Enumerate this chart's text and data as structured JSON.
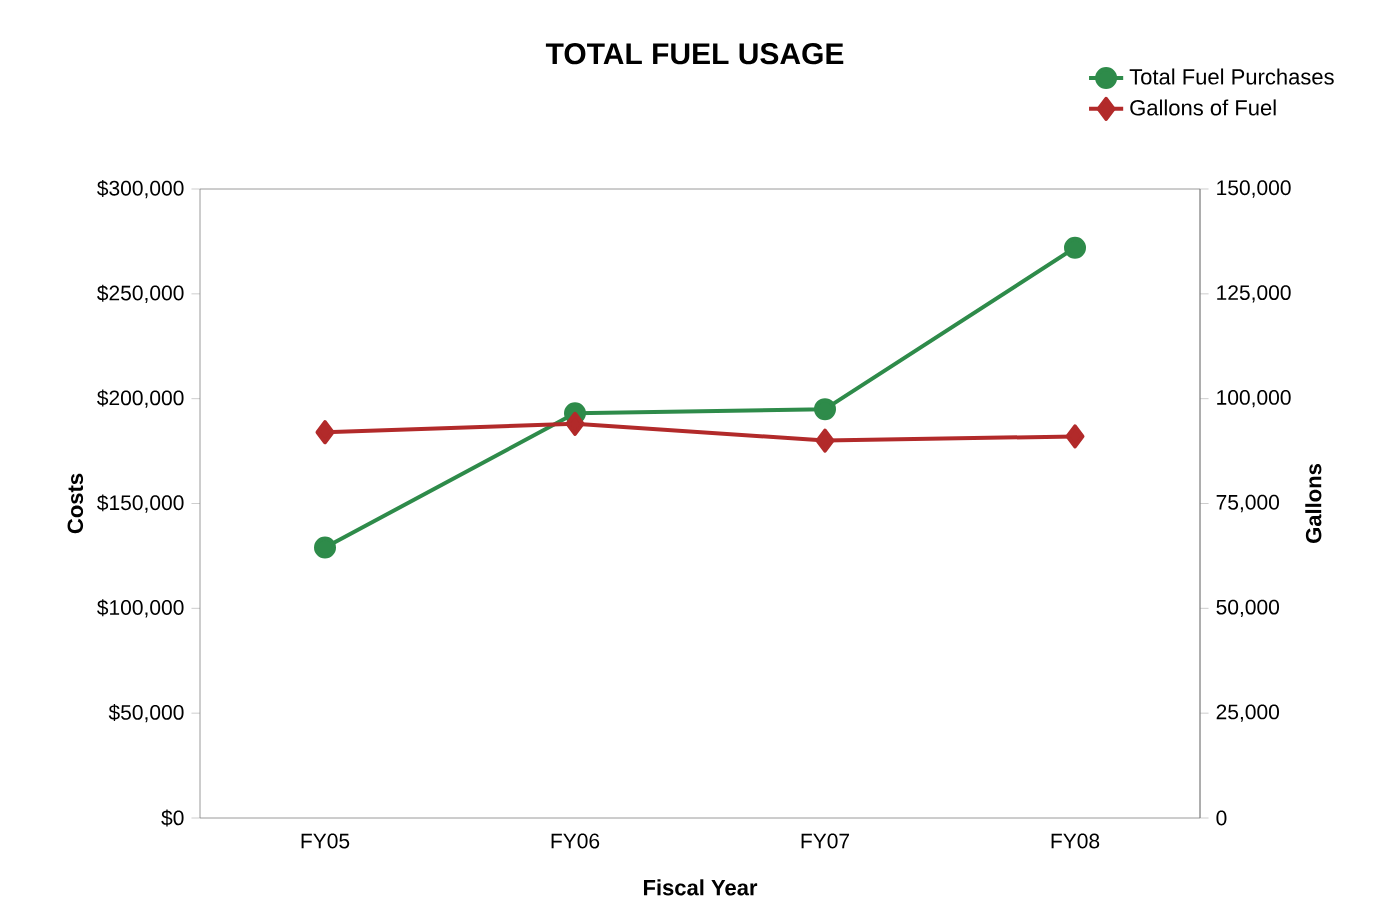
{
  "chart_data": {
    "type": "line",
    "title": "TOTAL FUEL USAGE",
    "xlabel": "Fiscal Year",
    "ylabel": "Costs",
    "y2label": "Gallons",
    "categories": [
      "FY05",
      "FY06",
      "FY07",
      "FY08"
    ],
    "series": [
      {
        "name": "Total Fuel Purchases",
        "color": "#2e8b4a",
        "marker": "circle",
        "values": [
          129000,
          193000,
          195000,
          272000
        ]
      },
      {
        "name": "Gallons of Fuel",
        "color": "#b22a2a",
        "marker": "diamond",
        "axis": "y2",
        "values": [
          92000,
          94000,
          90000,
          91000
        ]
      }
    ],
    "ylim": [
      0,
      300000
    ],
    "yticks": [
      {
        "value": 0,
        "label": "$0"
      },
      {
        "value": 50000,
        "label": "$50,000"
      },
      {
        "value": 100000,
        "label": "$100,000"
      },
      {
        "value": 150000,
        "label": "$150,000"
      },
      {
        "value": 200000,
        "label": "$200,000"
      },
      {
        "value": 250000,
        "label": "$250,000"
      },
      {
        "value": 300000,
        "label": "$300,000"
      }
    ],
    "y2lim": [
      0,
      150000
    ],
    "y2ticks": [
      0,
      {
        "value": 25000,
        "label": "25,000"
      },
      {
        "value": 50000,
        "label": "50,000"
      },
      {
        "value": 75000,
        "label": "75,000"
      },
      {
        "value": 100000,
        "label": "100,000"
      },
      {
        "value": 125000,
        "label": "125,000"
      },
      {
        "value": 150000,
        "label": "150,000"
      }
    ],
    "legend": "top right",
    "line_style": "solid"
  }
}
